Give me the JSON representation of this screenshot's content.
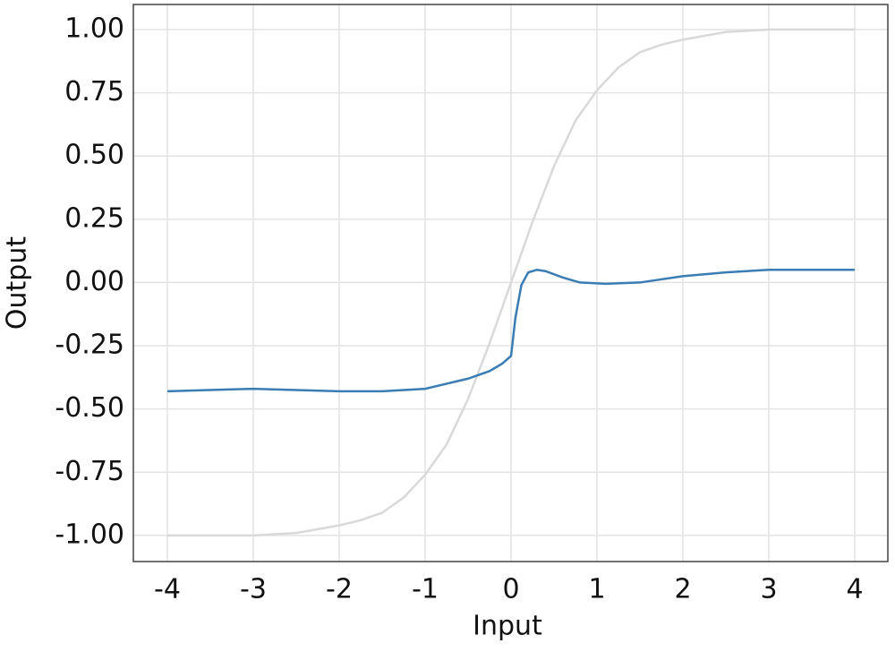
{
  "chart_data": {
    "type": "line",
    "x_label": "Input",
    "y_label": "Output",
    "xlim": [
      -4.396,
      4.385
    ],
    "ylim": [
      -1.103,
      1.099
    ],
    "xticks": [
      -4,
      -3,
      -2,
      -1,
      0,
      1,
      2,
      3,
      4
    ],
    "yticks": [
      {
        "value": 1,
        "label": "1.00"
      },
      {
        "value": 0.75,
        "label": "0.75"
      },
      {
        "value": 0.5,
        "label": "0.50"
      },
      {
        "value": 0.25,
        "label": "0.25"
      },
      {
        "value": 0,
        "label": "0.00"
      },
      {
        "value": -0.25,
        "label": "-0.25"
      },
      {
        "value": -0.5,
        "label": "-0.50"
      },
      {
        "value": -0.75,
        "label": "-0.75"
      },
      {
        "value": -1,
        "label": "-1.00"
      }
    ],
    "grid": true,
    "series": [
      {
        "color": "#d9d9d9",
        "x": [
          -4,
          -3.5,
          -3,
          -2.5,
          -2,
          -1.75,
          -1.5,
          -1.25,
          -1,
          -0.75,
          -0.5,
          -0.25,
          0,
          0.25,
          0.5,
          0.75,
          1,
          1.25,
          1.5,
          1.75,
          2,
          2.5,
          3,
          3.5,
          4
        ],
        "values": [
          -1.0,
          -1.0,
          -1.0,
          -0.99,
          -0.96,
          -0.94,
          -0.91,
          -0.85,
          -0.76,
          -0.64,
          -0.46,
          -0.24,
          0,
          0.24,
          0.46,
          0.64,
          0.76,
          0.85,
          0.91,
          0.94,
          0.96,
          0.99,
          1.0,
          1.0,
          1.0
        ]
      },
      {
        "color": "#3a7db5",
        "x": [
          -4,
          -3,
          -2,
          -1.5,
          -1,
          -0.75,
          -0.5,
          -0.25,
          -0.1,
          0,
          0.05,
          0.12,
          0.2,
          0.3,
          0.4,
          0.6,
          0.8,
          1.1,
          1.5,
          2,
          2.5,
          3,
          3.5,
          4
        ],
        "values": [
          -0.43,
          -0.42,
          -0.43,
          -0.43,
          -0.42,
          -0.4,
          -0.38,
          -0.35,
          -0.32,
          -0.29,
          -0.14,
          -0.01,
          0.04,
          0.05,
          0.045,
          0.02,
          0.0,
          -0.005,
          0.0,
          0.025,
          0.04,
          0.05,
          0.05,
          0.05
        ]
      }
    ]
  }
}
